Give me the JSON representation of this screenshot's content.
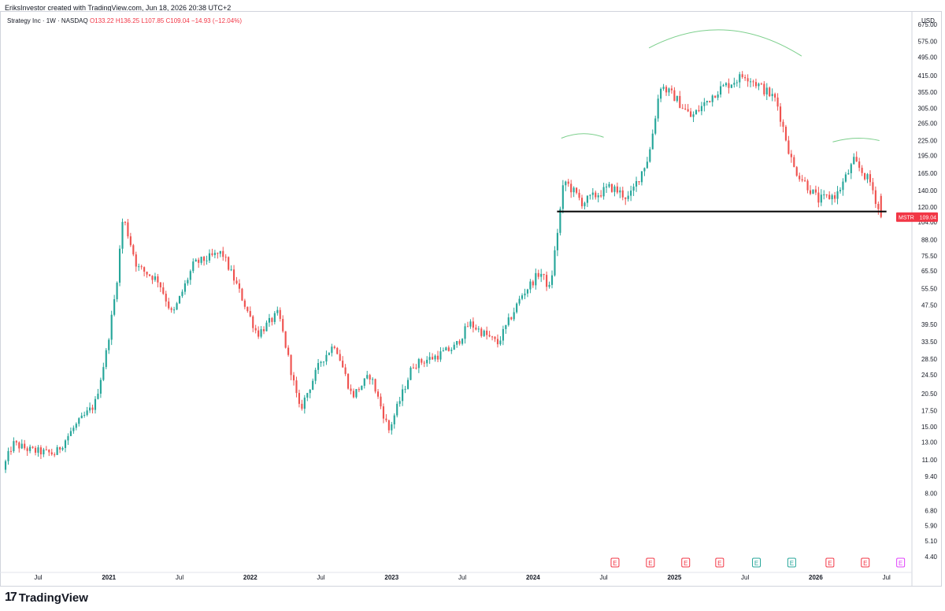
{
  "header": {
    "attribution": "EriksInvestor created with TradingView.com, Jun 18, 2026 20:38 UTC+2"
  },
  "legend": {
    "symbol_line": "Strategy Inc · 1W · NASDAQ",
    "ohlc_line": "O133.22 H136.25 L107.85 C109.04 −14.93 (−12.04%)"
  },
  "currency": "USD",
  "price_tag": {
    "ticker": "MSTR",
    "value": "109.04",
    "color": "#f23645"
  },
  "footer": {
    "logo_mark": "17",
    "logo_text": "TradingView"
  },
  "colors": {
    "up": "#26a69a",
    "down": "#ef5350",
    "arc": "#7ccf8c",
    "line": "#000000"
  },
  "chart_data": {
    "type": "candlestick",
    "scale": "log",
    "x_range": [
      "2020-04",
      "2026-07"
    ],
    "y_range": [
      3.9,
      760
    ],
    "y_ticks": [
      "675.00",
      "575.00",
      "495.00",
      "415.00",
      "355.00",
      "305.00",
      "265.00",
      "225.00",
      "195.00",
      "165.00",
      "140.00",
      "120.00",
      "104.00",
      "88.00",
      "75.50",
      "65.50",
      "55.50",
      "47.50",
      "39.50",
      "33.50",
      "28.50",
      "24.50",
      "20.50",
      "17.50",
      "15.00",
      "13.00",
      "11.00",
      "9.40",
      "8.00",
      "6.80",
      "5.90",
      "5.10",
      "4.40"
    ],
    "x_ticks": [
      {
        "label": "Jul",
        "t": 2020.5
      },
      {
        "label": "2021",
        "t": 2021.0
      },
      {
        "label": "Jul",
        "t": 2021.5
      },
      {
        "label": "2022",
        "t": 2022.0
      },
      {
        "label": "Jul",
        "t": 2022.5
      },
      {
        "label": "2023",
        "t": 2023.0
      },
      {
        "label": "Jul",
        "t": 2023.5
      },
      {
        "label": "2024",
        "t": 2024.0
      },
      {
        "label": "Jul",
        "t": 2024.5
      },
      {
        "label": "2025",
        "t": 2025.0
      },
      {
        "label": "Jul",
        "t": 2025.5
      },
      {
        "label": "2026",
        "t": 2026.0
      },
      {
        "label": "Jul",
        "t": 2026.5
      }
    ],
    "anchors": [
      {
        "t": 2020.25,
        "p": 10.0
      },
      {
        "t": 2020.32,
        "p": 12.8
      },
      {
        "t": 2020.45,
        "p": 12.0
      },
      {
        "t": 2020.62,
        "p": 11.6
      },
      {
        "t": 2020.75,
        "p": 14.8
      },
      {
        "t": 2020.9,
        "p": 18.5
      },
      {
        "t": 2020.98,
        "p": 30.0
      },
      {
        "t": 2021.05,
        "p": 55.0
      },
      {
        "t": 2021.1,
        "p": 110.0
      },
      {
        "t": 2021.2,
        "p": 68.0
      },
      {
        "t": 2021.35,
        "p": 60.0
      },
      {
        "t": 2021.45,
        "p": 43.0
      },
      {
        "t": 2021.6,
        "p": 70.0
      },
      {
        "t": 2021.8,
        "p": 78.0
      },
      {
        "t": 2021.9,
        "p": 58.0
      },
      {
        "t": 2022.05,
        "p": 36.0
      },
      {
        "t": 2022.2,
        "p": 44.0
      },
      {
        "t": 2022.35,
        "p": 17.5
      },
      {
        "t": 2022.5,
        "p": 28.0
      },
      {
        "t": 2022.6,
        "p": 33.0
      },
      {
        "t": 2022.72,
        "p": 20.0
      },
      {
        "t": 2022.85,
        "p": 24.5
      },
      {
        "t": 2022.98,
        "p": 14.5
      },
      {
        "t": 2023.15,
        "p": 27.0
      },
      {
        "t": 2023.3,
        "p": 29.0
      },
      {
        "t": 2023.45,
        "p": 32.0
      },
      {
        "t": 2023.55,
        "p": 40.0
      },
      {
        "t": 2023.75,
        "p": 33.0
      },
      {
        "t": 2023.92,
        "p": 52.0
      },
      {
        "t": 2024.05,
        "p": 65.0
      },
      {
        "t": 2024.12,
        "p": 55.0
      },
      {
        "t": 2024.22,
        "p": 155.0
      },
      {
        "t": 2024.35,
        "p": 125.0
      },
      {
        "t": 2024.55,
        "p": 145.0
      },
      {
        "t": 2024.68,
        "p": 130.0
      },
      {
        "t": 2024.82,
        "p": 195.0
      },
      {
        "t": 2024.9,
        "p": 380.0
      },
      {
        "t": 2025.0,
        "p": 340.0
      },
      {
        "t": 2025.12,
        "p": 280.0
      },
      {
        "t": 2025.3,
        "p": 360.0
      },
      {
        "t": 2025.5,
        "p": 420.0
      },
      {
        "t": 2025.62,
        "p": 370.0
      },
      {
        "t": 2025.72,
        "p": 330.0
      },
      {
        "t": 2025.84,
        "p": 175.0
      },
      {
        "t": 2026.02,
        "p": 128.0
      },
      {
        "t": 2026.15,
        "p": 135.0
      },
      {
        "t": 2026.27,
        "p": 185.0
      },
      {
        "t": 2026.39,
        "p": 150.0
      },
      {
        "t": 2026.46,
        "p": 109.0
      }
    ],
    "last": {
      "t": 2026.46,
      "o": 133.22,
      "h": 136.25,
      "l": 107.85,
      "c": 109.04
    },
    "support_line": {
      "price": 115.0,
      "t_start": 2024.17,
      "t_end": 2026.5
    },
    "arcs": [
      {
        "t_start": 2024.2,
        "t_end": 2024.5,
        "price_start": 230.0,
        "price_peak": 240.0,
        "price_end": 232.0
      },
      {
        "t_start": 2024.82,
        "t_end": 2025.9,
        "price_start": 540.0,
        "price_peak": 640.0,
        "price_end": 500.0
      },
      {
        "t_start": 2026.12,
        "t_end": 2026.45,
        "price_start": 222.0,
        "price_peak": 230.0,
        "price_end": 225.0
      }
    ],
    "earnings": [
      {
        "label": "E",
        "t": 2024.58,
        "color": "#f23645"
      },
      {
        "label": "E",
        "t": 2024.83,
        "color": "#f23645"
      },
      {
        "label": "E",
        "t": 2025.08,
        "color": "#f23645"
      },
      {
        "label": "E",
        "t": 2025.32,
        "color": "#f23645"
      },
      {
        "label": "E",
        "t": 2025.58,
        "color": "#26a69a"
      },
      {
        "label": "E",
        "t": 2025.83,
        "color": "#26a69a"
      },
      {
        "label": "E",
        "t": 2026.1,
        "color": "#f23645"
      },
      {
        "label": "E",
        "t": 2026.35,
        "color": "#f23645"
      },
      {
        "label": "E",
        "t": 2026.6,
        "color": "#e040fb"
      }
    ]
  }
}
